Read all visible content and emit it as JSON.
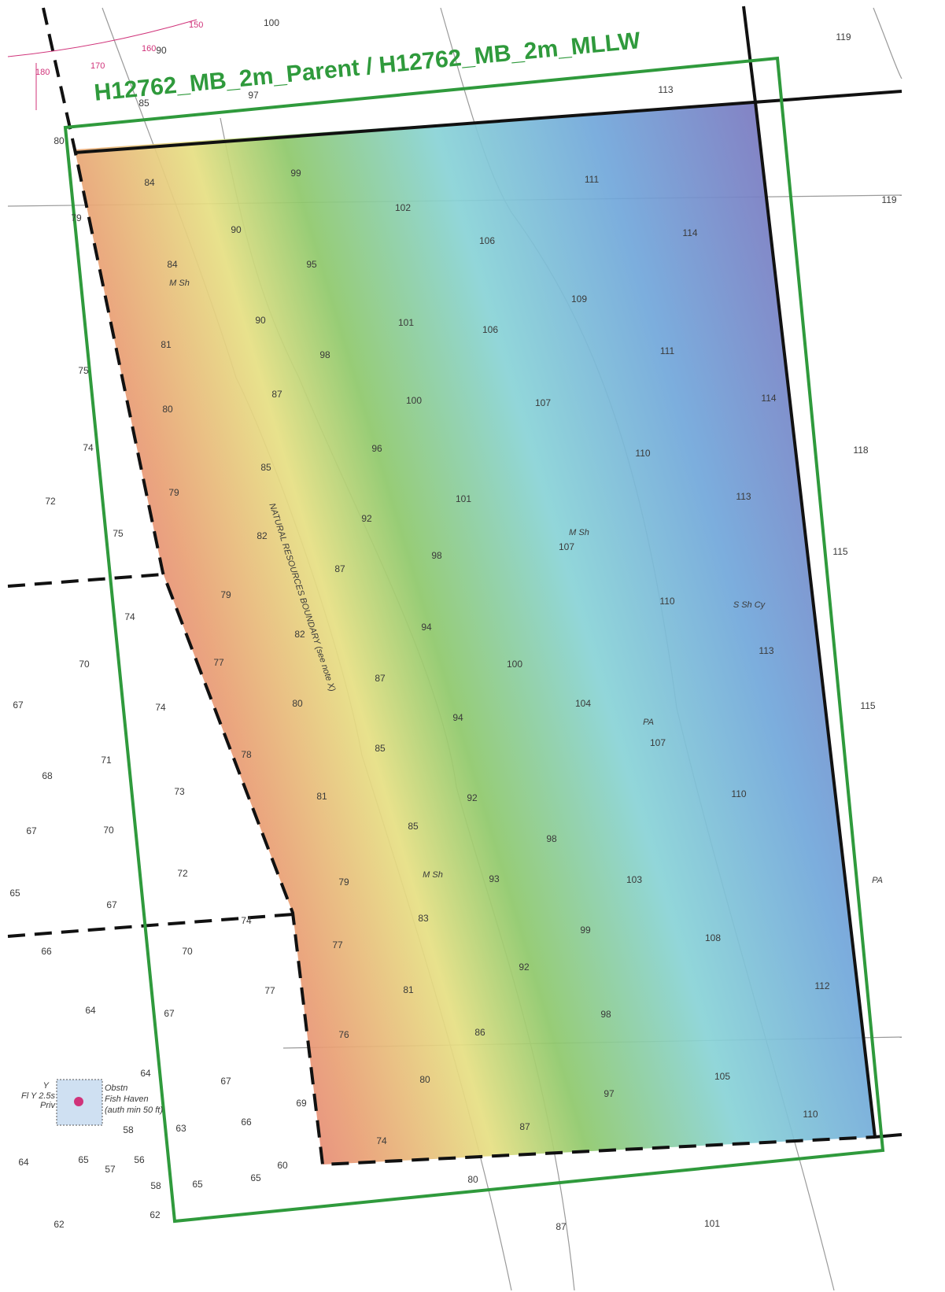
{
  "survey_label": "H12762_MB_2m_Parent / H12762_MB_2m_MLLW",
  "soundings": [
    100,
    90,
    85,
    97,
    113,
    119,
    119,
    80,
    79,
    75,
    74,
    72,
    75,
    74,
    70,
    67,
    74,
    71,
    68,
    73,
    67,
    70,
    65,
    72,
    67,
    74,
    66,
    70,
    77,
    64,
    67,
    64,
    67,
    69,
    58,
    63,
    66,
    64,
    65,
    56,
    60,
    57,
    58,
    65,
    65,
    62,
    62,
    80,
    87,
    101,
    118,
    115,
    115,
    84,
    99,
    111,
    102,
    90,
    114,
    106,
    84,
    95,
    109,
    90,
    101,
    106,
    81,
    98,
    111,
    87,
    100,
    107,
    114,
    80,
    96,
    110,
    85,
    101,
    113,
    79,
    92,
    82,
    107,
    98,
    87,
    79,
    110,
    94,
    82,
    113,
    77,
    100,
    87,
    80,
    104,
    94,
    107,
    85,
    78,
    110,
    81,
    92,
    85,
    98,
    79,
    93,
    103,
    83,
    99,
    108,
    77,
    92,
    112,
    81,
    98,
    76,
    86,
    105,
    80,
    97,
    110,
    87,
    74
  ],
  "bottom_notes": [
    "M Sh",
    "M Sh",
    "S Sh Cy",
    "M Sh",
    "PA",
    "PA"
  ],
  "boundary_label": "NATURAL RESOURCES BOUNDARY (see note X)",
  "compass_labels": [
    "180",
    "170",
    "160",
    "150"
  ],
  "fish_haven": {
    "light": "Fl Y 2.5s",
    "light_color": "Y",
    "private": "Priv",
    "obstruction": "Obstn",
    "name": "Fish Haven",
    "depth": "(auth min 50 ft)"
  }
}
